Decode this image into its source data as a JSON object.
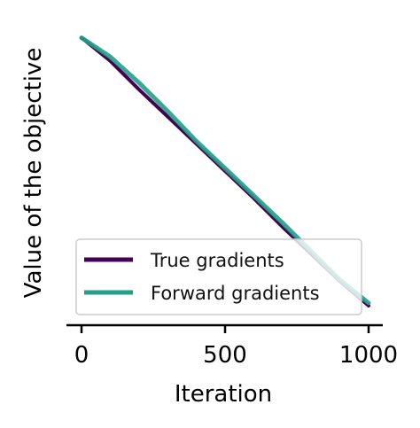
{
  "chart_data": {
    "type": "line",
    "title": "",
    "xlabel": "Iteration",
    "ylabel": "Value of the objective",
    "xlim": [
      0,
      1000
    ],
    "ylim": [
      0,
      1
    ],
    "xticks": [
      0,
      500,
      1000
    ],
    "y_tick_labels_shown": false,
    "y_axis_line_shown": false,
    "grid": false,
    "legend_position": "lower-center",
    "series": [
      {
        "name": "True gradients",
        "color": "#440154",
        "x": [
          0,
          100,
          200,
          300,
          400,
          500,
          600,
          700,
          800,
          900,
          1000
        ],
        "y": [
          0.985,
          0.9,
          0.795,
          0.695,
          0.595,
          0.495,
          0.395,
          0.29,
          0.19,
          0.09,
          0.0
        ]
      },
      {
        "name": "Forward gradients",
        "color": "#21a086",
        "x": [
          0,
          100,
          200,
          300,
          400,
          500,
          600,
          700,
          800,
          900,
          1000
        ],
        "y": [
          0.985,
          0.915,
          0.82,
          0.715,
          0.605,
          0.505,
          0.405,
          0.305,
          0.2,
          0.095,
          0.01
        ]
      }
    ]
  }
}
